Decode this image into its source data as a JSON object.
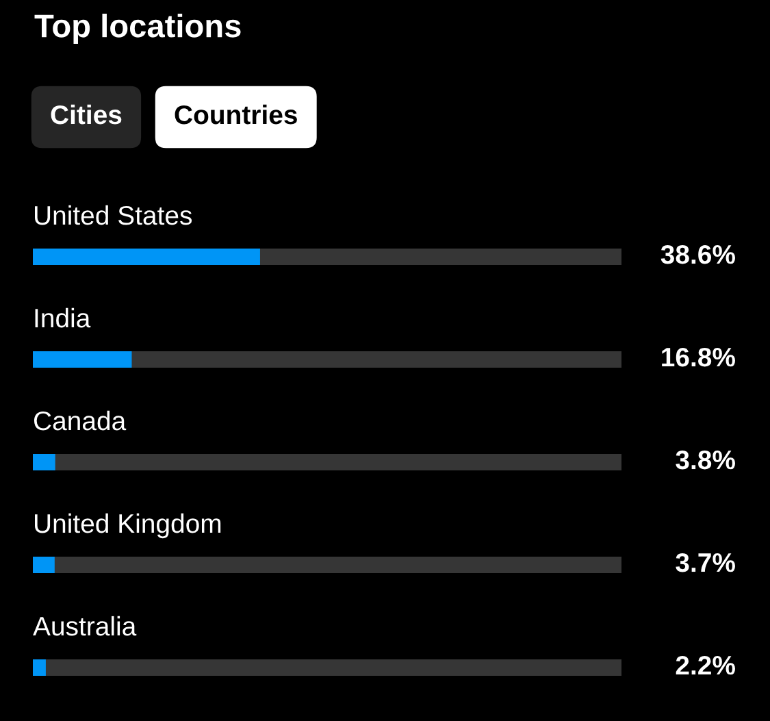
{
  "chart_data": {
    "type": "bar",
    "orientation": "horizontal",
    "title": "Top locations",
    "annotations": [
      "Cities",
      "Countries"
    ],
    "categories": [
      "United States",
      "India",
      "Canada",
      "United Kingdom",
      "Australia"
    ],
    "values": [
      38.6,
      16.8,
      3.8,
      3.7,
      2.2
    ],
    "value_labels": [
      "38.6%",
      "16.8%",
      "3.8%",
      "3.7%",
      "2.2%"
    ],
    "color": "#0095f6",
    "xlim": [
      0,
      100
    ],
    "tick_labels": false
  }
}
